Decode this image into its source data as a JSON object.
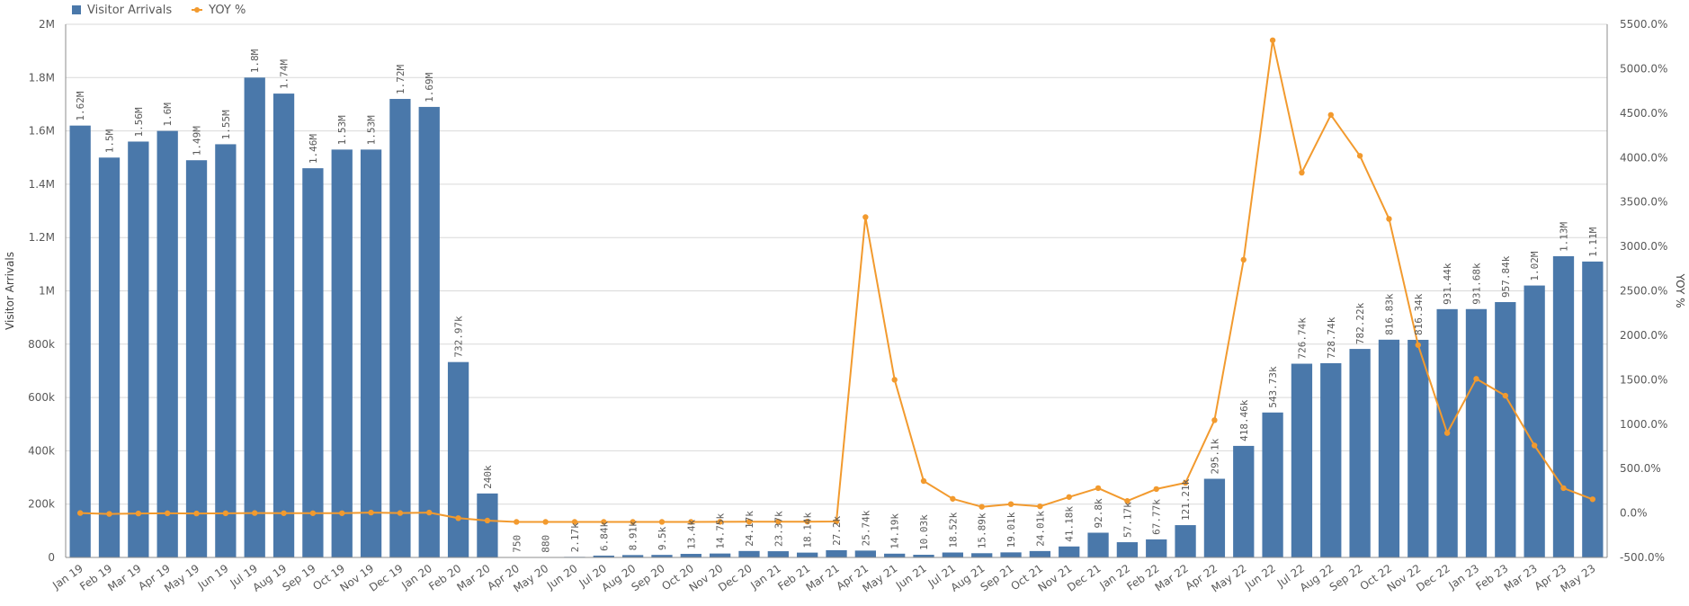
{
  "legend": {
    "bar_label": "Visitor Arrivals",
    "line_label": "YOY %"
  },
  "colors": {
    "bar": "#4a78aa",
    "line": "#f29a2e",
    "grid": "#d9d9d9",
    "axis": "#8c8c8c"
  },
  "chart_data": {
    "type": "bar",
    "combo_line": true,
    "categories": [
      "Jan 19",
      "Feb 19",
      "Mar 19",
      "Apr 19",
      "May 19",
      "Jun 19",
      "Jul 19",
      "Aug 19",
      "Sep 19",
      "Oct 19",
      "Nov 19",
      "Dec 19",
      "Jan 20",
      "Feb 20",
      "Mar 20",
      "Apr 20",
      "May 20",
      "Jun 20",
      "Jul 20",
      "Aug 20",
      "Sep 20",
      "Oct 20",
      "Nov 20",
      "Dec 20",
      "Jan 21",
      "Feb 21",
      "Mar 21",
      "Apr 21",
      "May 21",
      "Jun 21",
      "Jul 21",
      "Aug 21",
      "Sep 21",
      "Oct 21",
      "Nov 21",
      "Dec 21",
      "Jan 22",
      "Feb 22",
      "Mar 22",
      "Apr 22",
      "May 22",
      "Jun 22",
      "Jul 22",
      "Aug 22",
      "Sep 22",
      "Oct 22",
      "Nov 22",
      "Dec 22",
      "Jan 23",
      "Feb 23",
      "Mar 23",
      "Apr 23",
      "May 23"
    ],
    "series": [
      {
        "name": "Visitor Arrivals",
        "type": "bar",
        "axis": "left",
        "values": [
          1620000,
          1500000,
          1560000,
          1600000,
          1490000,
          1550000,
          1800000,
          1740000,
          1460000,
          1530000,
          1530000,
          1720000,
          1690000,
          732970,
          240000,
          750,
          880,
          2170,
          6840,
          8910,
          9500,
          13400,
          14750,
          24170,
          23370,
          18140,
          27200,
          25740,
          14190,
          10030,
          18520,
          15890,
          19010,
          24010,
          41180,
          92800,
          57170,
          67770,
          121210,
          295100,
          418460,
          543730,
          726740,
          728740,
          782220,
          816830,
          816340,
          931440,
          931680,
          957840,
          1020000,
          1130000,
          1110000
        ],
        "labels": [
          "1.62M",
          "1.5M",
          "1.56M",
          "1.6M",
          "1.49M",
          "1.55M",
          "1.8M",
          "1.74M",
          "1.46M",
          "1.53M",
          "1.53M",
          "1.72M",
          "1.69M",
          "732.97k",
          "240k",
          "750",
          "880",
          "2.17k",
          "6.84k",
          "8.91k",
          "9.5k",
          "13.4k",
          "14.75k",
          "24.17k",
          "23.37k",
          "18.14k",
          "27.2k",
          "25.74k",
          "14.19k",
          "10.03k",
          "18.52k",
          "15.89k",
          "19.01k",
          "24.01k",
          "41.18k",
          "92.8k",
          "57.17k",
          "67.77k",
          "121.21k",
          "295.1k",
          "418.46k",
          "543.73k",
          "726.74k",
          "728.74k",
          "782.22k",
          "816.83k",
          "816.34k",
          "931.44k",
          "931.68k",
          "957.84k",
          "1.02M",
          "1.13M",
          "1.11M"
        ]
      },
      {
        "name": "YOY %",
        "type": "line",
        "axis": "right",
        "values": [
          0,
          -10,
          -5,
          -3,
          -5,
          -3,
          0,
          -2,
          -2,
          -2,
          5,
          0,
          5,
          -58,
          -85,
          -100,
          -100,
          -100,
          -100,
          -100,
          -100,
          -100,
          -99,
          -98,
          -97,
          -97,
          -95,
          3330,
          1500,
          360,
          160,
          70,
          100,
          75,
          180,
          280,
          135,
          270,
          340,
          1045,
          2850,
          5320,
          3830,
          4480,
          4020,
          3310,
          1890,
          900,
          1510,
          1320,
          760,
          280,
          155
        ]
      }
    ],
    "y_left": {
      "title": "Visitor Arrivals",
      "range": [
        0,
        2000000
      ],
      "ticks": [
        0,
        200000,
        400000,
        600000,
        800000,
        1000000,
        1200000,
        1400000,
        1600000,
        1800000,
        2000000
      ],
      "tick_labels": [
        "0",
        "200k",
        "400k",
        "600k",
        "800k",
        "1M",
        "1.2M",
        "1.4M",
        "1.6M",
        "1.8M",
        "2M"
      ]
    },
    "y_right": {
      "title": "YOY %",
      "range": [
        -500,
        5500
      ],
      "ticks": [
        -500,
        0,
        500,
        1000,
        1500,
        2000,
        2500,
        3000,
        3500,
        4000,
        4500,
        5000,
        5500
      ],
      "tick_labels": [
        "-500.0%",
        "0.0%",
        "500.0%",
        "1000.0%",
        "1500.0%",
        "2000.0%",
        "2500.0%",
        "3000.0%",
        "3500.0%",
        "4000.0%",
        "4500.0%",
        "5000.0%",
        "5500.0%"
      ]
    },
    "grid": true,
    "legend_position": "top-left"
  }
}
